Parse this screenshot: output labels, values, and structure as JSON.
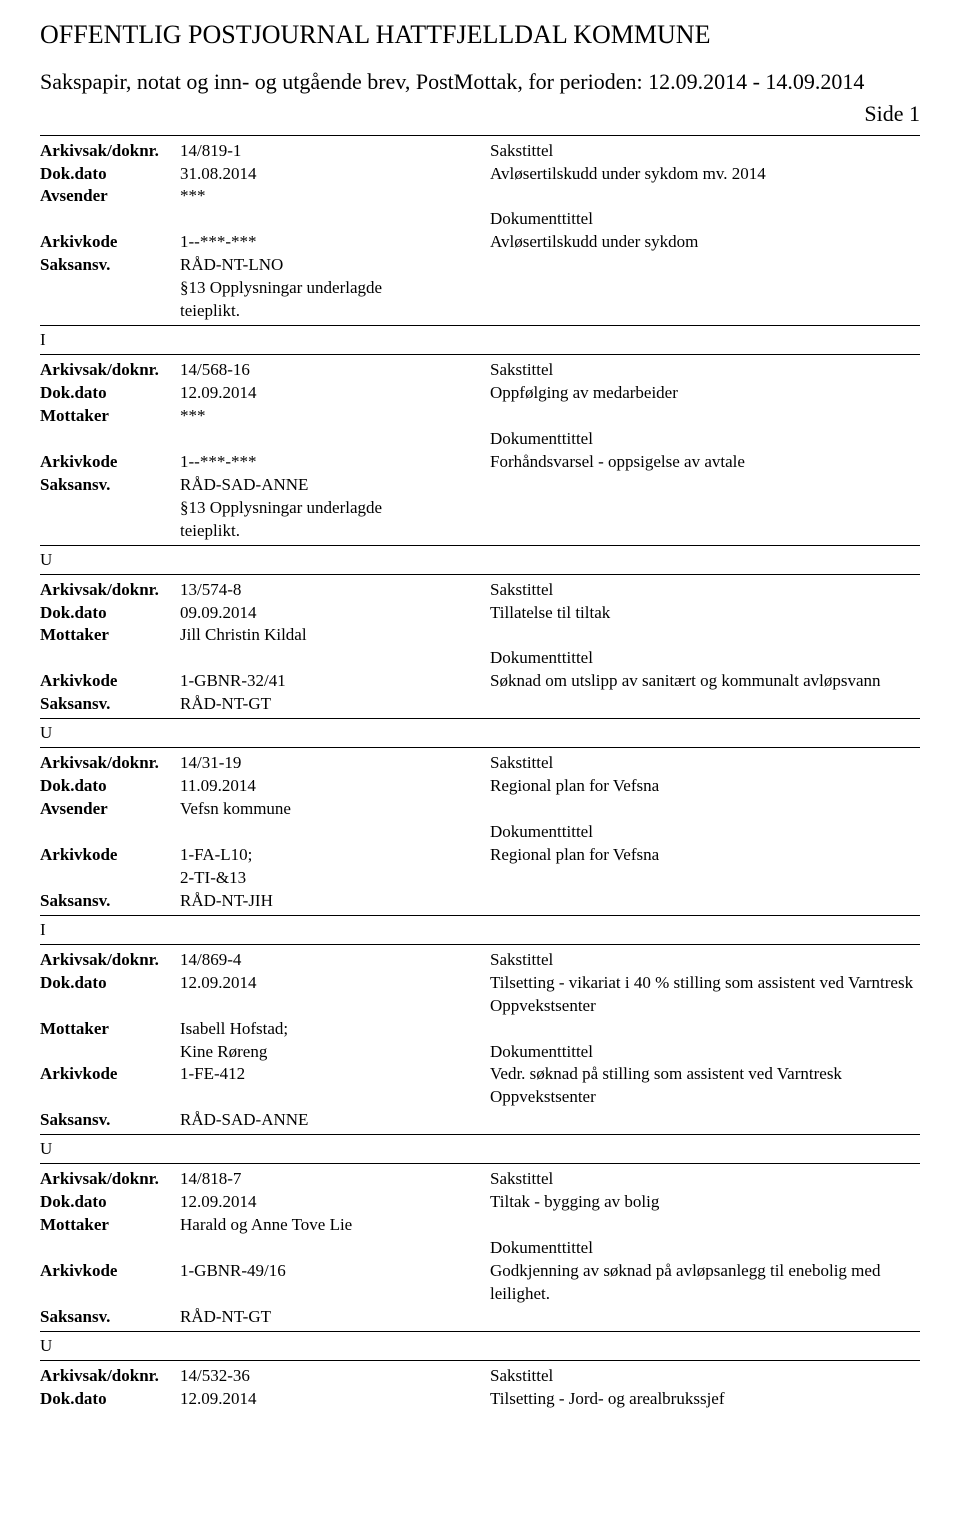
{
  "header": {
    "title": "OFFENTLIG POSTJOURNAL HATTFJELLDAL KOMMUNE",
    "subtitle": "Sakspapir, notat og inn- og utgående brev, PostMottak, for perioden: 12.09.2014 - 14.09.2014",
    "side": "Side 1"
  },
  "labels": {
    "arkivsak": "Arkivsak/doknr.",
    "dokdato": "Dok.dato",
    "avsender": "Avsender",
    "mottaker": "Mottaker",
    "arkivkode": "Arkivkode",
    "saksansv": "Saksansv.",
    "sakstittel": "Sakstittel",
    "dokumenttittel": "Dokumenttittel"
  },
  "entries": [
    {
      "arkivsak": "14/819-1",
      "dokdato": "31.08.2014",
      "party_label": "Avsender",
      "party": "***",
      "arkivkode": "1--***-***",
      "saksansv": "RÅD-NT-LNO",
      "extra": [
        "§13 Opplysningar underlagde",
        "teieplikt."
      ],
      "sakstittel": "Avløsertilskudd under sykdom mv. 2014",
      "doktittel": "Avløsertilskudd under sykdom",
      "marker": "I"
    },
    {
      "arkivsak": "14/568-16",
      "dokdato": "12.09.2014",
      "party_label": "Mottaker",
      "party": "***",
      "arkivkode": "1--***-***",
      "saksansv": "RÅD-SAD-ANNE",
      "extra": [
        "§13 Opplysningar underlagde",
        "teieplikt."
      ],
      "sakstittel": "Oppfølging av medarbeider",
      "doktittel": "Forhåndsvarsel - oppsigelse av avtale",
      "marker": "U"
    },
    {
      "arkivsak": "13/574-8",
      "dokdato": "09.09.2014",
      "party_label": "Mottaker",
      "party": "Jill Christin Kildal",
      "arkivkode": "1-GBNR-32/41",
      "saksansv": "RÅD-NT-GT",
      "extra": [],
      "sakstittel": "Tillatelse til tiltak",
      "doktittel": "Søknad om utslipp av sanitært og kommunalt avløpsvann",
      "marker": "U"
    },
    {
      "arkivsak": "14/31-19",
      "dokdato": "11.09.2014",
      "party_label": "Avsender",
      "party": "Vefsn kommune",
      "arkivkode": "1-FA-L10;",
      "arkivkode2": "2-TI-&13",
      "saksansv": "RÅD-NT-JIH",
      "extra": [],
      "sakstittel": "Regional plan for Vefsna",
      "doktittel": "Regional plan for Vefsna",
      "marker": "I"
    },
    {
      "arkivsak": "14/869-4",
      "dokdato": "12.09.2014",
      "party_label": "Mottaker",
      "party": "Isabell Hofstad;",
      "party2": "Kine Røreng",
      "arkivkode": "1-FE-412",
      "saksansv": "RÅD-SAD-ANNE",
      "extra": [],
      "sakstittel": "Tilsetting - vikariat i 40 % stilling som assistent ved Varntresk Oppvekstsenter",
      "doktittel": "Vedr. søknad på stilling som assistent ved Varntresk Oppvekstsenter",
      "marker": "U"
    },
    {
      "arkivsak": "14/818-7",
      "dokdato": "12.09.2014",
      "party_label": "Mottaker",
      "party": "Harald og Anne Tove Lie",
      "arkivkode": "1-GBNR-49/16",
      "saksansv": "RÅD-NT-GT",
      "extra": [],
      "sakstittel": "Tiltak - bygging av bolig",
      "doktittel": "Godkjenning av søknad på avløpsanlegg til enebolig med leilighet.",
      "marker": "U"
    },
    {
      "arkivsak": "14/532-36",
      "dokdato": "12.09.2014",
      "sakstittel": "Sakstittel",
      "sakstittel_text": "Tilsetting - Jord- og arealbrukssjef",
      "partial": true
    }
  ]
}
